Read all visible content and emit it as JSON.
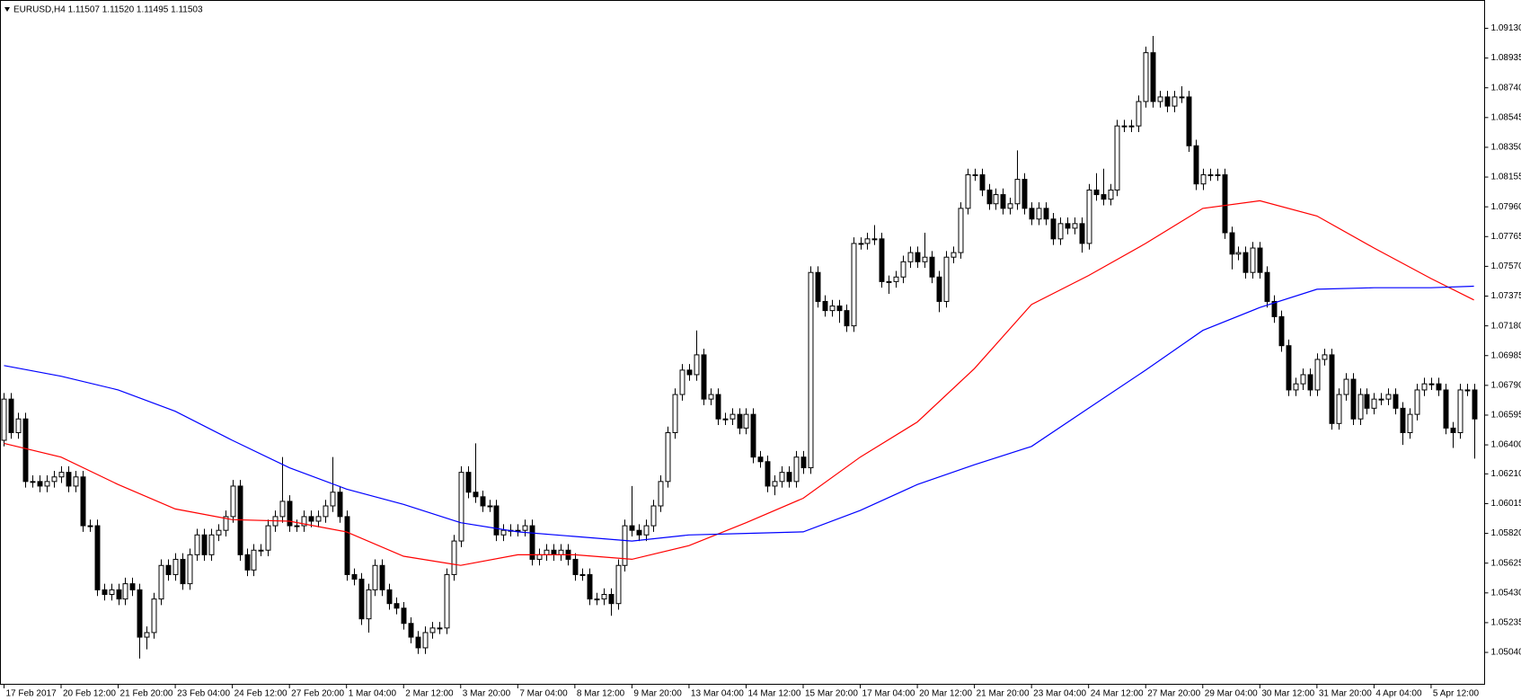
{
  "chart_data": {
    "type": "candlestick",
    "title": "EURUSD,H4  1.11507 1.11520 1.11495 1.11503",
    "xlim": [
      -0.5,
      207.5
    ],
    "ylim": [
      1.0484,
      1.0928
    ],
    "yticks": [
      {
        "value": 1.0913,
        "label": "1.09130"
      },
      {
        "value": 1.08935,
        "label": "1.08935"
      },
      {
        "value": 1.0874,
        "label": "1.08740"
      },
      {
        "value": 1.08545,
        "label": "1.08545"
      },
      {
        "value": 1.0835,
        "label": "1.08350"
      },
      {
        "value": 1.08155,
        "label": "1.08155"
      },
      {
        "value": 1.0796,
        "label": "1.07960"
      },
      {
        "value": 1.07765,
        "label": "1.07765"
      },
      {
        "value": 1.0757,
        "label": "1.07570"
      },
      {
        "value": 1.07375,
        "label": "1.07375"
      },
      {
        "value": 1.0718,
        "label": "1.07180"
      },
      {
        "value": 1.06985,
        "label": "1.06985"
      },
      {
        "value": 1.0679,
        "label": "1.06790"
      },
      {
        "value": 1.06595,
        "label": "1.06595"
      },
      {
        "value": 1.064,
        "label": "1.06400"
      },
      {
        "value": 1.0621,
        "label": "1.06210"
      },
      {
        "value": 1.06015,
        "label": "1.06015"
      },
      {
        "value": 1.0582,
        "label": "1.05820"
      },
      {
        "value": 1.05625,
        "label": "1.05625"
      },
      {
        "value": 1.0543,
        "label": "1.05430"
      },
      {
        "value": 1.05235,
        "label": "1.05235"
      },
      {
        "value": 1.0504,
        "label": "1.05040"
      }
    ],
    "xticks": [
      {
        "value": 0,
        "label": "17 Feb 2017"
      },
      {
        "value": 8,
        "label": "20 Feb 12:00"
      },
      {
        "value": 16,
        "label": "21 Feb 20:00"
      },
      {
        "value": 24,
        "label": "23 Feb 04:00"
      },
      {
        "value": 32,
        "label": "24 Feb 12:00"
      },
      {
        "value": 40,
        "label": "27 Feb 20:00"
      },
      {
        "value": 48,
        "label": "1 Mar 04:00"
      },
      {
        "value": 56,
        "label": "2 Mar 12:00"
      },
      {
        "value": 64,
        "label": "3 Mar 20:00"
      },
      {
        "value": 72,
        "label": "7 Mar 04:00"
      },
      {
        "value": 80,
        "label": "8 Mar 12:00"
      },
      {
        "value": 88,
        "label": "9 Mar 20:00"
      },
      {
        "value": 96,
        "label": "13 Mar 04:00"
      },
      {
        "value": 104,
        "label": "14 Mar 12:00"
      },
      {
        "value": 112,
        "label": "15 Mar 20:00"
      },
      {
        "value": 120,
        "label": "17 Mar 04:00"
      },
      {
        "value": 128,
        "label": "20 Mar 12:00"
      },
      {
        "value": 136,
        "label": "21 Mar 20:00"
      },
      {
        "value": 144,
        "label": "23 Mar 04:00"
      },
      {
        "value": 152,
        "label": "24 Mar 12:00"
      },
      {
        "value": 160,
        "label": "27 Mar 20:00"
      },
      {
        "value": 168,
        "label": "29 Mar 04:00"
      },
      {
        "value": 176,
        "label": "30 Mar 12:00"
      },
      {
        "value": 184,
        "label": "31 Mar 20:00"
      },
      {
        "value": 192,
        "label": "4 Apr 04:00"
      },
      {
        "value": 200,
        "label": "5 Apr 12:00"
      }
    ],
    "open": [
      1.0643,
      1.067,
      1.0648,
      1.0657,
      1.0616,
      1.0616,
      1.0613,
      1.0616,
      1.0619,
      1.0622,
      1.0613,
      1.0619,
      1.0587,
      1.0587,
      1.0545,
      1.0542,
      1.0545,
      1.0539,
      1.0549,
      1.0545,
      1.0514,
      1.0517,
      1.0539,
      1.0561,
      1.0555,
      1.0565,
      1.0549,
      1.0568,
      1.0581,
      1.0568,
      1.0581,
      1.0584,
      1.0593,
      1.0613,
      1.0568,
      1.0558,
      1.0571,
      1.0571,
      1.0587,
      1.0593,
      1.0603,
      1.0587,
      1.0587,
      1.0593,
      1.059,
      1.0593,
      1.06,
      1.0609,
      1.0593,
      1.0555,
      1.0552,
      1.0526,
      1.0545,
      1.0561,
      1.0545,
      1.0536,
      1.0533,
      1.0523,
      1.0514,
      1.0507,
      1.0517,
      1.052,
      1.052,
      1.0555,
      1.0577,
      1.0622,
      1.0609,
      1.0606,
      1.06,
      1.06,
      1.0581,
      1.0584,
      1.0584,
      1.0584,
      1.0587,
      1.0565,
      1.0568,
      1.0571,
      1.0568,
      1.0571,
      1.0565,
      1.0555,
      1.0555,
      1.0539,
      1.0539,
      1.0542,
      1.0536,
      1.0561,
      1.0587,
      1.0584,
      1.0581,
      1.0587,
      1.06,
      1.0616,
      1.0648,
      1.0673,
      1.0689,
      1.0686,
      1.0699,
      1.067,
      1.0673,
      1.0657,
      1.0657,
      1.066,
      1.0651,
      1.066,
      1.0632,
      1.0629,
      1.0613,
      1.0616,
      1.0622,
      1.0616,
      1.0632,
      1.0625,
      1.0753,
      1.0734,
      1.0728,
      1.0731,
      1.0728,
      1.0718,
      1.0772,
      1.0772,
      1.0775,
      1.0775,
      1.0747,
      1.0747,
      1.075,
      1.076,
      1.0766,
      1.076,
      1.0763,
      1.075,
      1.0734,
      1.0763,
      1.0766,
      1.0795,
      1.0817,
      1.0817,
      1.0807,
      1.0798,
      1.0804,
      1.0795,
      1.0798,
      1.0814,
      1.0795,
      1.0788,
      1.0795,
      1.0788,
      1.0775,
      1.0785,
      1.0782,
      1.0785,
      1.0772,
      1.0807,
      1.0804,
      1.0801,
      1.0807,
      1.0849,
      1.0849,
      1.0849,
      1.0865,
      1.0897,
      1.0865,
      1.0868,
      1.0862,
      1.0868,
      1.0868,
      1.0836,
      1.0811,
      1.0817,
      1.0817,
      1.0817,
      1.0779,
      1.0765,
      1.0766,
      1.0753,
      1.0769,
      1.0753,
      1.0734,
      1.0724,
      1.0705,
      1.0676,
      1.068,
      1.0686,
      1.0676,
      1.0696,
      1.0699,
      1.0654,
      1.0673,
      1.0683,
      1.0657,
      1.0673,
      1.0664,
      1.067,
      1.067,
      1.0673,
      1.0664,
      1.0648,
      1.066,
      1.0676,
      1.068,
      1.068,
      1.0676,
      1.0651,
      1.0648,
      1.0676,
      1.0676
    ],
    "high": [
      1.0674,
      1.0674,
      1.0661,
      1.0661,
      1.062,
      1.062,
      1.062,
      1.0623,
      1.0626,
      1.0626,
      1.0623,
      1.0623,
      1.0591,
      1.0591,
      1.0549,
      1.0549,
      1.0549,
      1.0553,
      1.0553,
      1.0549,
      1.0521,
      1.0543,
      1.0565,
      1.0565,
      1.0569,
      1.0569,
      1.0572,
      1.0585,
      1.0585,
      1.0585,
      1.0588,
      1.0597,
      1.0617,
      1.0617,
      1.0572,
      1.0575,
      1.0575,
      1.0591,
      1.0597,
      1.0632,
      1.0607,
      1.0591,
      1.0597,
      1.0597,
      1.0597,
      1.0604,
      1.0632,
      1.0613,
      1.0597,
      1.0559,
      1.0556,
      1.0549,
      1.0565,
      1.0565,
      1.0549,
      1.054,
      1.0537,
      1.0527,
      1.0518,
      1.0521,
      1.0524,
      1.0524,
      1.0559,
      1.0581,
      1.0626,
      1.0626,
      1.0641,
      1.061,
      1.0604,
      1.0604,
      1.0588,
      1.0588,
      1.0588,
      1.0591,
      1.0591,
      1.0572,
      1.0575,
      1.0575,
      1.0575,
      1.0575,
      1.0569,
      1.0559,
      1.0559,
      1.0543,
      1.0546,
      1.0546,
      1.0565,
      1.0591,
      1.0613,
      1.0588,
      1.0591,
      1.0604,
      1.062,
      1.0652,
      1.0677,
      1.0693,
      1.0693,
      1.0715,
      1.0703,
      1.0677,
      1.0677,
      1.0661,
      1.0664,
      1.0664,
      1.0664,
      1.0664,
      1.0636,
      1.0633,
      1.062,
      1.0626,
      1.0626,
      1.0636,
      1.0636,
      1.0757,
      1.0757,
      1.0738,
      1.0735,
      1.0735,
      1.0732,
      1.0776,
      1.0776,
      1.0779,
      1.0784,
      1.0779,
      1.0751,
      1.0754,
      1.0764,
      1.077,
      1.077,
      1.0779,
      1.0767,
      1.0754,
      1.0767,
      1.077,
      1.0799,
      1.0821,
      1.0821,
      1.0821,
      1.0811,
      1.0808,
      1.0808,
      1.0802,
      1.0833,
      1.0818,
      1.0799,
      1.0799,
      1.0799,
      1.0792,
      1.0789,
      1.0789,
      1.0789,
      1.0789,
      1.0811,
      1.0818,
      1.0821,
      1.0811,
      1.0853,
      1.0853,
      1.0853,
      1.0869,
      1.0901,
      1.0908,
      1.0872,
      1.0872,
      1.0872,
      1.0875,
      1.0872,
      1.084,
      1.0821,
      1.0821,
      1.0821,
      1.0821,
      1.0783,
      1.077,
      1.077,
      1.0773,
      1.0773,
      1.0757,
      1.0738,
      1.0728,
      1.0709,
      1.0684,
      1.069,
      1.069,
      1.07,
      1.0703,
      1.0703,
      1.0677,
      1.0687,
      1.0687,
      1.0677,
      1.0677,
      1.0674,
      1.0674,
      1.0677,
      1.0677,
      1.0668,
      1.0664,
      1.068,
      1.0684,
      1.0684,
      1.0684,
      1.068,
      1.0655,
      1.068,
      1.068,
      1.068
    ],
    "low": [
      1.0639,
      1.0644,
      1.0644,
      1.0612,
      1.0612,
      1.0609,
      1.0609,
      1.0612,
      1.0615,
      1.0609,
      1.0609,
      1.0583,
      1.0583,
      1.0541,
      1.0538,
      1.0538,
      1.0535,
      1.0535,
      1.0541,
      1.05,
      1.0506,
      1.0513,
      1.0535,
      1.0551,
      1.0551,
      1.0545,
      1.0545,
      1.0564,
      1.0564,
      1.0564,
      1.0577,
      1.058,
      1.0589,
      1.0564,
      1.0554,
      1.0554,
      1.0567,
      1.0567,
      1.0583,
      1.0589,
      1.0583,
      1.0583,
      1.0583,
      1.0586,
      1.0586,
      1.0589,
      1.0596,
      1.0589,
      1.0551,
      1.0548,
      1.0522,
      1.0517,
      1.0541,
      1.0541,
      1.0532,
      1.0529,
      1.0519,
      1.051,
      1.0503,
      1.0503,
      1.0513,
      1.0516,
      1.0516,
      1.0551,
      1.0573,
      1.0605,
      1.0602,
      1.0596,
      1.0596,
      1.0577,
      1.0577,
      1.058,
      1.058,
      1.058,
      1.0561,
      1.0561,
      1.0564,
      1.0564,
      1.0564,
      1.0561,
      1.0551,
      1.0551,
      1.0535,
      1.0535,
      1.0535,
      1.0528,
      1.0532,
      1.0557,
      1.058,
      1.0577,
      1.0577,
      1.0583,
      1.0596,
      1.0612,
      1.0644,
      1.0669,
      1.0682,
      1.0682,
      1.0666,
      1.0666,
      1.0653,
      1.0653,
      1.0653,
      1.0647,
      1.0647,
      1.0628,
      1.0625,
      1.0609,
      1.0607,
      1.0612,
      1.0612,
      1.0612,
      1.0621,
      1.0621,
      1.073,
      1.0724,
      1.0724,
      1.072,
      1.0714,
      1.0714,
      1.0768,
      1.0768,
      1.0771,
      1.0743,
      1.0739,
      1.0743,
      1.0746,
      1.0756,
      1.0756,
      1.0756,
      1.0746,
      1.0727,
      1.073,
      1.0759,
      1.0762,
      1.0791,
      1.0813,
      1.0803,
      1.0794,
      1.0794,
      1.0791,
      1.0791,
      1.0794,
      1.0791,
      1.0784,
      1.0784,
      1.0784,
      1.0771,
      1.0771,
      1.0778,
      1.0778,
      1.0766,
      1.0768,
      1.08,
      1.0797,
      1.0797,
      1.0803,
      1.0845,
      1.0845,
      1.0845,
      1.0861,
      1.0861,
      1.0861,
      1.0858,
      1.0858,
      1.0864,
      1.0832,
      1.0807,
      1.0807,
      1.0813,
      1.0813,
      1.0775,
      1.0755,
      1.0761,
      1.0749,
      1.0749,
      1.0749,
      1.073,
      1.072,
      1.0701,
      1.0672,
      1.0672,
      1.0676,
      1.0672,
      1.0672,
      1.0692,
      1.065,
      1.065,
      1.0669,
      1.0653,
      1.0653,
      1.066,
      1.066,
      1.0666,
      1.0666,
      1.066,
      1.064,
      1.0644,
      1.0656,
      1.0672,
      1.0676,
      1.0672,
      1.0647,
      1.0638,
      1.0644,
      1.0672,
      1.0631
    ],
    "close": [
      1.067,
      1.0648,
      1.0657,
      1.0616,
      1.0616,
      1.0613,
      1.0616,
      1.0619,
      1.0622,
      1.0613,
      1.0619,
      1.0587,
      1.0587,
      1.0545,
      1.0542,
      1.0545,
      1.0539,
      1.0549,
      1.0545,
      1.0514,
      1.0517,
      1.0539,
      1.0561,
      1.0555,
      1.0565,
      1.0549,
      1.0568,
      1.0581,
      1.0568,
      1.0581,
      1.0584,
      1.0593,
      1.0613,
      1.0568,
      1.0558,
      1.0571,
      1.0571,
      1.0587,
      1.0593,
      1.0603,
      1.0587,
      1.0587,
      1.0593,
      1.059,
      1.0593,
      1.06,
      1.0609,
      1.0593,
      1.0555,
      1.0552,
      1.0526,
      1.0545,
      1.0561,
      1.0545,
      1.0536,
      1.0533,
      1.0523,
      1.0514,
      1.0507,
      1.0517,
      1.052,
      1.052,
      1.0555,
      1.0577,
      1.0622,
      1.0609,
      1.0606,
      1.06,
      1.06,
      1.0581,
      1.0584,
      1.0584,
      1.0584,
      1.0587,
      1.0565,
      1.0568,
      1.0571,
      1.0568,
      1.0571,
      1.0565,
      1.0555,
      1.0555,
      1.0539,
      1.0539,
      1.0542,
      1.0536,
      1.0561,
      1.0587,
      1.0584,
      1.0581,
      1.0587,
      1.06,
      1.0616,
      1.0648,
      1.0673,
      1.0689,
      1.0686,
      1.0699,
      1.067,
      1.0673,
      1.0657,
      1.0657,
      1.066,
      1.0651,
      1.066,
      1.0632,
      1.0629,
      1.0613,
      1.0616,
      1.0622,
      1.0616,
      1.0632,
      1.0625,
      1.0753,
      1.0734,
      1.0728,
      1.0731,
      1.0728,
      1.0718,
      1.0772,
      1.0772,
      1.0775,
      1.0775,
      1.0747,
      1.0747,
      1.075,
      1.076,
      1.0766,
      1.076,
      1.0763,
      1.075,
      1.0734,
      1.0763,
      1.0766,
      1.0795,
      1.0817,
      1.0817,
      1.0807,
      1.0798,
      1.0804,
      1.0795,
      1.0798,
      1.0814,
      1.0795,
      1.0788,
      1.0795,
      1.0788,
      1.0775,
      1.0785,
      1.0782,
      1.0785,
      1.0772,
      1.0807,
      1.0804,
      1.0801,
      1.0807,
      1.0849,
      1.0849,
      1.0849,
      1.0865,
      1.0897,
      1.0865,
      1.0868,
      1.0862,
      1.0868,
      1.0868,
      1.0836,
      1.0811,
      1.0817,
      1.0817,
      1.0817,
      1.0779,
      1.0765,
      1.0766,
      1.0753,
      1.0769,
      1.0753,
      1.0734,
      1.0724,
      1.0705,
      1.0676,
      1.068,
      1.0686,
      1.0676,
      1.0696,
      1.0699,
      1.0654,
      1.0673,
      1.0683,
      1.0657,
      1.0673,
      1.0664,
      1.067,
      1.067,
      1.0673,
      1.0664,
      1.0648,
      1.066,
      1.0676,
      1.068,
      1.068,
      1.0676,
      1.0651,
      1.0648,
      1.0676,
      1.0676,
      1.0657
    ],
    "up_color": "#ffffff",
    "down_color": "#000000",
    "lines": [
      {
        "color": "#ff0000",
        "x": [
          0,
          8,
          16,
          24,
          32,
          40,
          48,
          56,
          64,
          72,
          80,
          88,
          96,
          104,
          112,
          120,
          128,
          136,
          144,
          152,
          160,
          168,
          176,
          184,
          192,
          200,
          206
        ],
        "values": [
          1.0641,
          1.0632,
          1.0614,
          1.0598,
          1.0591,
          1.059,
          1.0583,
          1.0567,
          1.0561,
          1.0568,
          1.0568,
          1.0565,
          1.0574,
          1.0589,
          1.0605,
          1.0632,
          1.0655,
          1.069,
          1.0732,
          1.0751,
          1.0772,
          1.0795,
          1.08,
          1.079,
          1.0769,
          1.0749,
          1.0735
        ]
      },
      {
        "color": "#0000ff",
        "x": [
          0,
          8,
          16,
          24,
          32,
          40,
          48,
          56,
          64,
          72,
          80,
          88,
          96,
          104,
          112,
          120,
          128,
          136,
          144,
          152,
          160,
          168,
          176,
          184,
          192,
          200,
          206
        ],
        "values": [
          1.0692,
          1.0685,
          1.0676,
          1.0662,
          1.0643,
          1.0625,
          1.0611,
          1.0601,
          1.0589,
          1.0583,
          1.058,
          1.0577,
          1.0581,
          1.0582,
          1.0583,
          1.0597,
          1.0614,
          1.0627,
          1.0639,
          1.0664,
          1.0689,
          1.0715,
          1.073,
          1.0742,
          1.0743,
          1.0743,
          1.0744
        ]
      }
    ]
  }
}
